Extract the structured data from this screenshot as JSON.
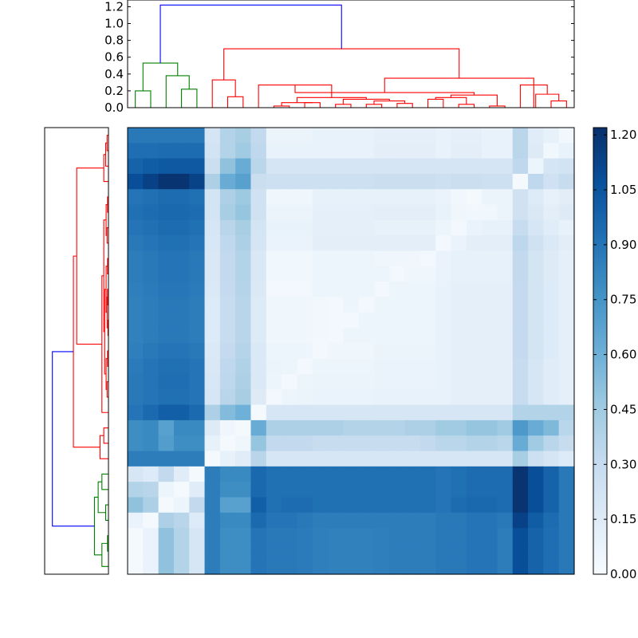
{
  "chart_data": {
    "type": "heatmap",
    "title": "",
    "n": 29,
    "colormap": "Blues",
    "colorbar": {
      "min": 0.0,
      "max": 1.22,
      "ticks": [
        "0.00",
        "0.15",
        "0.30",
        "0.45",
        "0.60",
        "0.75",
        "0.90",
        "1.05",
        "1.20"
      ]
    },
    "top_dendrogram": {
      "ylim": [
        0,
        1.28
      ],
      "ticks": [
        "0.0",
        "0.2",
        "0.4",
        "0.6",
        "0.8",
        "1.0",
        "1.2"
      ],
      "colors": [
        "green",
        "red",
        "blue"
      ]
    },
    "left_dendrogram": {
      "colors": [
        "red",
        "green",
        "blue"
      ]
    },
    "row_profiles": [
      [
        0.88,
        0.88,
        0.88,
        0.88,
        0.88,
        0.21,
        0.38,
        0.42,
        0.32,
        0.07,
        0.07,
        0.07,
        0.09,
        0.09,
        0.09,
        0.09,
        0.11,
        0.11,
        0.11,
        0.11,
        0.09,
        0.11,
        0.11,
        0.09,
        0.09,
        0.35,
        0.14,
        0.1,
        0.04
      ],
      [
        0.93,
        0.93,
        0.94,
        0.94,
        0.94,
        0.23,
        0.38,
        0.45,
        0.33,
        0.09,
        0.09,
        0.09,
        0.09,
        0.09,
        0.09,
        0.09,
        0.12,
        0.12,
        0.12,
        0.12,
        0.09,
        0.12,
        0.12,
        0.09,
        0.09,
        0.35,
        0.15,
        0.04,
        0.09
      ],
      [
        0.98,
        1.01,
        1.03,
        1.03,
        1.03,
        0.27,
        0.5,
        0.62,
        0.35,
        0.21,
        0.21,
        0.21,
        0.21,
        0.21,
        0.21,
        0.21,
        0.21,
        0.21,
        0.21,
        0.21,
        0.21,
        0.21,
        0.21,
        0.21,
        0.21,
        0.33,
        0.06,
        0.21,
        0.23
      ],
      [
        1.08,
        1.14,
        1.2,
        1.2,
        1.13,
        0.4,
        0.62,
        0.68,
        0.28,
        0.26,
        0.26,
        0.26,
        0.26,
        0.26,
        0.26,
        0.26,
        0.28,
        0.28,
        0.28,
        0.28,
        0.26,
        0.28,
        0.28,
        0.26,
        0.26,
        0.02,
        0.33,
        0.25,
        0.3
      ],
      [
        0.9,
        0.92,
        0.94,
        0.94,
        0.92,
        0.22,
        0.4,
        0.46,
        0.25,
        0.05,
        0.05,
        0.05,
        0.1,
        0.1,
        0.1,
        0.1,
        0.1,
        0.1,
        0.1,
        0.1,
        0.08,
        0.04,
        0.02,
        0.07,
        0.07,
        0.24,
        0.16,
        0.1,
        0.13
      ],
      [
        0.92,
        0.94,
        0.96,
        0.96,
        0.94,
        0.22,
        0.42,
        0.48,
        0.24,
        0.07,
        0.07,
        0.07,
        0.11,
        0.11,
        0.11,
        0.11,
        0.12,
        0.12,
        0.12,
        0.12,
        0.09,
        0.05,
        0.04,
        0.04,
        0.07,
        0.24,
        0.18,
        0.12,
        0.15
      ],
      [
        0.9,
        0.92,
        0.94,
        0.94,
        0.92,
        0.2,
        0.36,
        0.42,
        0.22,
        0.09,
        0.09,
        0.09,
        0.11,
        0.11,
        0.11,
        0.11,
        0.1,
        0.1,
        0.1,
        0.1,
        0.06,
        0.03,
        0.08,
        0.1,
        0.1,
        0.3,
        0.2,
        0.14,
        0.1
      ],
      [
        0.88,
        0.9,
        0.92,
        0.92,
        0.9,
        0.19,
        0.33,
        0.4,
        0.21,
        0.08,
        0.08,
        0.08,
        0.12,
        0.12,
        0.12,
        0.12,
        0.12,
        0.12,
        0.12,
        0.12,
        0.03,
        0.08,
        0.12,
        0.12,
        0.12,
        0.34,
        0.24,
        0.17,
        0.13
      ],
      [
        0.86,
        0.88,
        0.9,
        0.9,
        0.88,
        0.18,
        0.32,
        0.38,
        0.18,
        0.04,
        0.04,
        0.04,
        0.06,
        0.06,
        0.06,
        0.06,
        0.05,
        0.05,
        0.05,
        0.03,
        0.08,
        0.1,
        0.1,
        0.1,
        0.1,
        0.32,
        0.22,
        0.15,
        0.11
      ],
      [
        0.86,
        0.88,
        0.9,
        0.9,
        0.88,
        0.18,
        0.32,
        0.38,
        0.18,
        0.04,
        0.04,
        0.04,
        0.06,
        0.06,
        0.06,
        0.06,
        0.06,
        0.03,
        0.05,
        0.05,
        0.08,
        0.1,
        0.1,
        0.1,
        0.1,
        0.32,
        0.22,
        0.15,
        0.11
      ],
      [
        0.85,
        0.87,
        0.89,
        0.89,
        0.87,
        0.17,
        0.31,
        0.37,
        0.17,
        0.03,
        0.03,
        0.03,
        0.06,
        0.06,
        0.06,
        0.06,
        0.03,
        0.06,
        0.06,
        0.06,
        0.09,
        0.11,
        0.11,
        0.11,
        0.11,
        0.31,
        0.22,
        0.16,
        0.11
      ],
      [
        0.84,
        0.86,
        0.88,
        0.88,
        0.86,
        0.16,
        0.3,
        0.36,
        0.16,
        0.05,
        0.05,
        0.05,
        0.04,
        0.03,
        0.06,
        0.03,
        0.06,
        0.06,
        0.06,
        0.06,
        0.09,
        0.11,
        0.11,
        0.11,
        0.11,
        0.31,
        0.22,
        0.16,
        0.11
      ],
      [
        0.84,
        0.86,
        0.88,
        0.88,
        0.86,
        0.16,
        0.3,
        0.36,
        0.16,
        0.05,
        0.05,
        0.05,
        0.04,
        0.03,
        0.03,
        0.06,
        0.06,
        0.06,
        0.06,
        0.06,
        0.09,
        0.11,
        0.11,
        0.11,
        0.11,
        0.31,
        0.22,
        0.16,
        0.11
      ],
      [
        0.84,
        0.86,
        0.88,
        0.88,
        0.86,
        0.16,
        0.3,
        0.36,
        0.16,
        0.05,
        0.05,
        0.05,
        0.04,
        0.03,
        0.06,
        0.06,
        0.06,
        0.06,
        0.06,
        0.06,
        0.09,
        0.11,
        0.11,
        0.11,
        0.11,
        0.31,
        0.22,
        0.16,
        0.11
      ],
      [
        0.85,
        0.88,
        0.9,
        0.9,
        0.88,
        0.17,
        0.31,
        0.37,
        0.17,
        0.06,
        0.06,
        0.06,
        0.03,
        0.05,
        0.05,
        0.05,
        0.07,
        0.07,
        0.07,
        0.07,
        0.09,
        0.11,
        0.11,
        0.11,
        0.11,
        0.31,
        0.22,
        0.16,
        0.11
      ],
      [
        0.87,
        0.9,
        0.92,
        0.92,
        0.9,
        0.18,
        0.33,
        0.39,
        0.17,
        0.07,
        0.06,
        0.03,
        0.06,
        0.06,
        0.06,
        0.06,
        0.08,
        0.08,
        0.08,
        0.08,
        0.09,
        0.11,
        0.11,
        0.11,
        0.11,
        0.3,
        0.2,
        0.14,
        0.11
      ],
      [
        0.88,
        0.9,
        0.93,
        0.93,
        0.9,
        0.19,
        0.34,
        0.4,
        0.17,
        0.06,
        0.03,
        0.06,
        0.07,
        0.07,
        0.07,
        0.07,
        0.08,
        0.08,
        0.08,
        0.08,
        0.09,
        0.11,
        0.11,
        0.11,
        0.11,
        0.3,
        0.2,
        0.14,
        0.11
      ],
      [
        0.88,
        0.9,
        0.92,
        0.92,
        0.9,
        0.2,
        0.36,
        0.42,
        0.15,
        0.03,
        0.06,
        0.07,
        0.08,
        0.08,
        0.08,
        0.08,
        0.09,
        0.09,
        0.09,
        0.09,
        0.09,
        0.11,
        0.11,
        0.11,
        0.11,
        0.3,
        0.2,
        0.14,
        0.11
      ],
      [
        0.9,
        0.95,
        1.0,
        1.0,
        0.95,
        0.4,
        0.54,
        0.6,
        0.02,
        0.2,
        0.2,
        0.2,
        0.2,
        0.2,
        0.2,
        0.2,
        0.2,
        0.2,
        0.2,
        0.2,
        0.2,
        0.2,
        0.2,
        0.2,
        0.2,
        0.38,
        0.38,
        0.38,
        0.38
      ],
      [
        0.78,
        0.8,
        0.68,
        0.8,
        0.8,
        0.15,
        0.05,
        0.02,
        0.62,
        0.4,
        0.4,
        0.4,
        0.4,
        0.4,
        0.38,
        0.38,
        0.38,
        0.38,
        0.4,
        0.4,
        0.45,
        0.45,
        0.48,
        0.48,
        0.45,
        0.72,
        0.62,
        0.55,
        0.35
      ],
      [
        0.78,
        0.8,
        0.7,
        0.78,
        0.78,
        0.1,
        0.02,
        0.05,
        0.48,
        0.32,
        0.32,
        0.32,
        0.3,
        0.3,
        0.3,
        0.3,
        0.3,
        0.3,
        0.3,
        0.32,
        0.35,
        0.35,
        0.38,
        0.38,
        0.35,
        0.62,
        0.45,
        0.35,
        0.3
      ],
      [
        0.86,
        0.86,
        0.86,
        0.86,
        0.86,
        0.02,
        0.1,
        0.14,
        0.36,
        0.2,
        0.2,
        0.2,
        0.2,
        0.2,
        0.2,
        0.2,
        0.2,
        0.2,
        0.2,
        0.2,
        0.2,
        0.2,
        0.2,
        0.2,
        0.2,
        0.42,
        0.26,
        0.21,
        0.16
      ],
      [
        0.2,
        0.16,
        0.32,
        0.14,
        0.02,
        0.86,
        0.8,
        0.8,
        0.96,
        0.92,
        0.92,
        0.92,
        0.92,
        0.92,
        0.92,
        0.92,
        0.92,
        0.92,
        0.92,
        0.92,
        0.9,
        0.92,
        0.94,
        0.94,
        0.94,
        1.2,
        1.08,
        0.98,
        0.88
      ],
      [
        0.38,
        0.36,
        0.06,
        0.02,
        0.14,
        0.86,
        0.78,
        0.78,
        0.96,
        0.92,
        0.92,
        0.92,
        0.92,
        0.92,
        0.92,
        0.92,
        0.92,
        0.92,
        0.92,
        0.92,
        0.9,
        0.92,
        0.94,
        0.94,
        0.94,
        1.2,
        1.08,
        0.98,
        0.88
      ],
      [
        0.5,
        0.4,
        0.02,
        0.06,
        0.32,
        0.86,
        0.68,
        0.68,
        1.0,
        0.92,
        0.94,
        0.94,
        0.92,
        0.92,
        0.92,
        0.92,
        0.92,
        0.92,
        0.92,
        0.92,
        0.9,
        0.94,
        0.96,
        0.96,
        0.94,
        1.2,
        1.08,
        0.98,
        0.88
      ],
      [
        0.08,
        0.02,
        0.4,
        0.36,
        0.16,
        0.86,
        0.8,
        0.8,
        0.95,
        0.9,
        0.9,
        0.88,
        0.86,
        0.86,
        0.86,
        0.86,
        0.86,
        0.86,
        0.86,
        0.86,
        0.88,
        0.88,
        0.9,
        0.9,
        0.88,
        1.14,
        1.01,
        0.94,
        0.88
      ],
      [
        0.02,
        0.08,
        0.5,
        0.38,
        0.2,
        0.86,
        0.78,
        0.78,
        0.9,
        0.88,
        0.88,
        0.87,
        0.85,
        0.84,
        0.84,
        0.84,
        0.85,
        0.86,
        0.86,
        0.86,
        0.88,
        0.88,
        0.9,
        0.9,
        0.86,
        1.08,
        0.98,
        0.93,
        0.88
      ],
      [
        0.02,
        0.08,
        0.5,
        0.38,
        0.2,
        0.86,
        0.78,
        0.78,
        0.9,
        0.88,
        0.88,
        0.87,
        0.85,
        0.84,
        0.84,
        0.84,
        0.85,
        0.86,
        0.86,
        0.86,
        0.88,
        0.88,
        0.9,
        0.9,
        0.86,
        1.08,
        0.98,
        0.93,
        0.88
      ],
      [
        0.02,
        0.08,
        0.5,
        0.38,
        0.2,
        0.86,
        0.78,
        0.78,
        0.9,
        0.88,
        0.88,
        0.87,
        0.85,
        0.84,
        0.84,
        0.84,
        0.85,
        0.86,
        0.86,
        0.86,
        0.88,
        0.88,
        0.9,
        0.9,
        0.86,
        1.08,
        0.98,
        0.93,
        0.88
      ]
    ]
  }
}
